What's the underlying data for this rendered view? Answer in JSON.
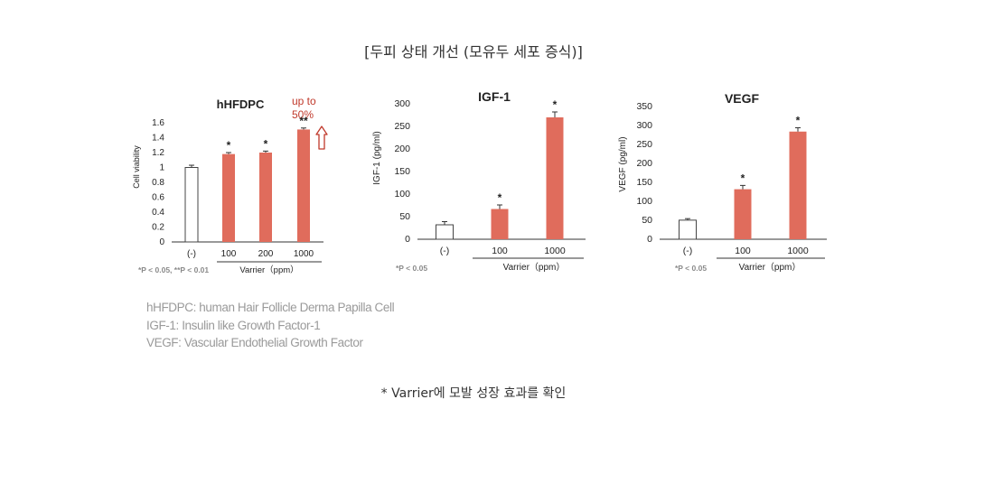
{
  "page": {
    "title": "[두피 상태 개선 (모유두 세포 증식)]",
    "footnote": "* Varrier에 모발 성장 효과를 확인",
    "definitions": [
      "hHFDPC: human Hair Follicle Derma Papilla Cell",
      "IGF-1: Insulin like Growth Factor-1",
      "VEGF: Vascular Endothelial Growth Factor"
    ]
  },
  "colors": {
    "bar": "#e06c5c",
    "control_fill": "#ffffff",
    "axis": "#333333",
    "callout": "#c0392b"
  },
  "chart_data": [
    {
      "type": "bar",
      "title": "hHFDPC",
      "ylabel": "Cell viability",
      "xlabel": "Varrier（ppm）",
      "categories": [
        "(-)",
        "100",
        "200",
        "1000"
      ],
      "values": [
        1.0,
        1.18,
        1.2,
        1.51
      ],
      "errors": [
        0.03,
        0.02,
        0.02,
        0.02
      ],
      "significance": [
        "",
        "*",
        "*",
        "**"
      ],
      "ylim": [
        0,
        1.6
      ],
      "yticks": [
        "0",
        "0.2",
        "0.4",
        "0.6",
        "0.8",
        "1",
        "1.2",
        "1.4",
        "1.6"
      ],
      "annotation": "up to 50%",
      "note": "*P < 0.05, **P < 0.01"
    },
    {
      "type": "bar",
      "title": "IGF-1",
      "ylabel": "IGF-1 (pg/ml)",
      "xlabel": "Varrier（ppm）",
      "categories": [
        "(-)",
        "100",
        "1000"
      ],
      "values": [
        32,
        67,
        270
      ],
      "errors": [
        7,
        9,
        12
      ],
      "significance": [
        "",
        "*",
        "*"
      ],
      "ylim": [
        0,
        300
      ],
      "yticks": [
        "0",
        "50",
        "100",
        "150",
        "200",
        "250",
        "300"
      ],
      "note": "*P < 0.05"
    },
    {
      "type": "bar",
      "title": "VEGF",
      "ylabel": "VEGF (pg/ml)",
      "xlabel": "Varrier（ppm）",
      "categories": [
        "(-)",
        "100",
        "1000"
      ],
      "values": [
        50,
        131,
        282
      ],
      "errors": [
        4,
        10,
        10
      ],
      "significance": [
        "",
        "*",
        "*"
      ],
      "ylim": [
        0,
        350
      ],
      "yticks": [
        "0",
        "50",
        "100",
        "150",
        "200",
        "250",
        "300",
        "350"
      ],
      "note": "*P < 0.05"
    }
  ]
}
